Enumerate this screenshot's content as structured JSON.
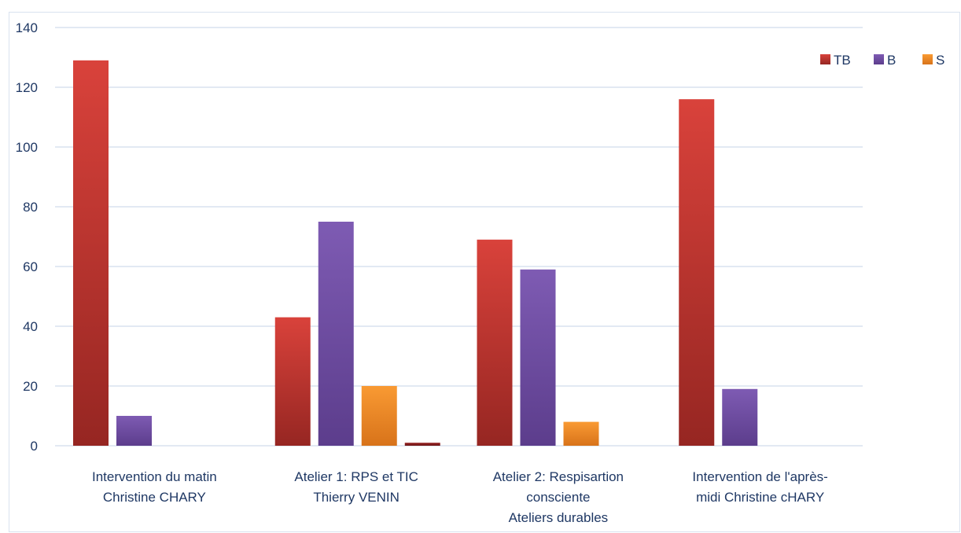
{
  "chart_data": {
    "type": "bar",
    "title": "",
    "xlabel": "",
    "ylabel": "",
    "ylim": [
      0,
      140
    ],
    "yticks": [
      0,
      20,
      40,
      60,
      80,
      100,
      120,
      140
    ],
    "grid": true,
    "legend_position": "top-right",
    "categories": [
      [
        "Intervention du matin",
        "Christine CHARY"
      ],
      [
        "Atelier 1: RPS et TIC",
        "Thierry VENIN"
      ],
      [
        "Atelier 2: Respisartion",
        "consciente",
        "Ateliers durables"
      ],
      [
        "Intervention de l'après-",
        "midi Christine cHARY"
      ]
    ],
    "series": [
      {
        "name": "TB",
        "color": "#c0392b",
        "values": [
          129,
          43,
          69,
          116
        ]
      },
      {
        "name": "B",
        "color": "#7653a8",
        "values": [
          10,
          75,
          59,
          19
        ]
      },
      {
        "name": "S",
        "color": "#f5922a",
        "values": [
          0,
          20,
          8,
          0
        ]
      },
      {
        "name": "",
        "color": "#8b1f1f",
        "values": [
          0,
          1,
          0,
          0
        ]
      }
    ]
  }
}
